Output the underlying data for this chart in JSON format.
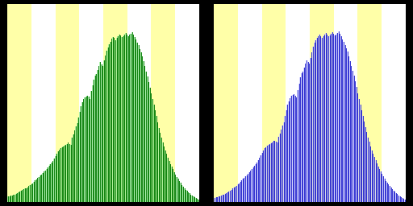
{
  "bg_color": "#000000",
  "stripe_yellow": "#ffffa8",
  "stripe_white": "#ffffff",
  "n_stripes": 8,
  "female_fill": "#99ee99",
  "female_bar_color": "#007700",
  "male_fill": "#ccccff",
  "male_bar_color": "#2222cc",
  "female_values": [
    0.03,
    0.032,
    0.034,
    0.036,
    0.038,
    0.042,
    0.045,
    0.048,
    0.052,
    0.056,
    0.06,
    0.064,
    0.068,
    0.072,
    0.076,
    0.08,
    0.085,
    0.09,
    0.095,
    0.1,
    0.108,
    0.115,
    0.122,
    0.128,
    0.133,
    0.14,
    0.148,
    0.156,
    0.162,
    0.168,
    0.175,
    0.183,
    0.192,
    0.2,
    0.21,
    0.22,
    0.232,
    0.245,
    0.258,
    0.27,
    0.278,
    0.285,
    0.29,
    0.295,
    0.3,
    0.305,
    0.31,
    0.315,
    0.31,
    0.305,
    0.34,
    0.36,
    0.38,
    0.4,
    0.42,
    0.45,
    0.48,
    0.51,
    0.53,
    0.545,
    0.555,
    0.56,
    0.565,
    0.558,
    0.548,
    0.59,
    0.62,
    0.65,
    0.67,
    0.68,
    0.7,
    0.72,
    0.74,
    0.73,
    0.72,
    0.75,
    0.775,
    0.8,
    0.82,
    0.835,
    0.85,
    0.865,
    0.875,
    0.868,
    0.858,
    0.87,
    0.88,
    0.888,
    0.882,
    0.875,
    0.88,
    0.888,
    0.895,
    0.888,
    0.88,
    0.885,
    0.892,
    0.9,
    0.888,
    0.875,
    0.86,
    0.845,
    0.83,
    0.812,
    0.795,
    0.77,
    0.745,
    0.72,
    0.692,
    0.665,
    0.635,
    0.605,
    0.575,
    0.545,
    0.515,
    0.485,
    0.455,
    0.425,
    0.395,
    0.368,
    0.342,
    0.318,
    0.295,
    0.274,
    0.255,
    0.236,
    0.219,
    0.203,
    0.188,
    0.174,
    0.16,
    0.147,
    0.135,
    0.123,
    0.112,
    0.102,
    0.092,
    0.083,
    0.075,
    0.067,
    0.06,
    0.053,
    0.047,
    0.041,
    0.036,
    0.031,
    0.026,
    0.022,
    0.018,
    0.014
  ],
  "male_values": [
    0.025,
    0.027,
    0.029,
    0.031,
    0.033,
    0.036,
    0.039,
    0.042,
    0.046,
    0.05,
    0.054,
    0.058,
    0.063,
    0.067,
    0.072,
    0.077,
    0.082,
    0.088,
    0.094,
    0.1,
    0.108,
    0.116,
    0.124,
    0.13,
    0.136,
    0.143,
    0.151,
    0.16,
    0.168,
    0.175,
    0.183,
    0.192,
    0.202,
    0.212,
    0.222,
    0.235,
    0.248,
    0.262,
    0.275,
    0.285,
    0.292,
    0.298,
    0.303,
    0.308,
    0.313,
    0.318,
    0.323,
    0.325,
    0.32,
    0.315,
    0.345,
    0.365,
    0.385,
    0.405,
    0.425,
    0.455,
    0.485,
    0.515,
    0.535,
    0.55,
    0.562,
    0.568,
    0.572,
    0.565,
    0.555,
    0.595,
    0.628,
    0.66,
    0.682,
    0.692,
    0.712,
    0.732,
    0.752,
    0.742,
    0.732,
    0.762,
    0.792,
    0.822,
    0.842,
    0.855,
    0.868,
    0.878,
    0.885,
    0.878,
    0.868,
    0.878,
    0.888,
    0.895,
    0.888,
    0.878,
    0.882,
    0.89,
    0.898,
    0.89,
    0.882,
    0.888,
    0.896,
    0.905,
    0.892,
    0.878,
    0.862,
    0.848,
    0.832,
    0.815,
    0.798,
    0.772,
    0.748,
    0.722,
    0.695,
    0.668,
    0.638,
    0.608,
    0.578,
    0.548,
    0.518,
    0.488,
    0.458,
    0.428,
    0.398,
    0.37,
    0.344,
    0.32,
    0.297,
    0.276,
    0.256,
    0.238,
    0.221,
    0.205,
    0.19,
    0.176,
    0.162,
    0.149,
    0.137,
    0.125,
    0.114,
    0.104,
    0.094,
    0.085,
    0.077,
    0.069,
    0.062,
    0.055,
    0.049,
    0.043,
    0.037,
    0.032,
    0.027,
    0.023,
    0.019,
    0.015
  ]
}
